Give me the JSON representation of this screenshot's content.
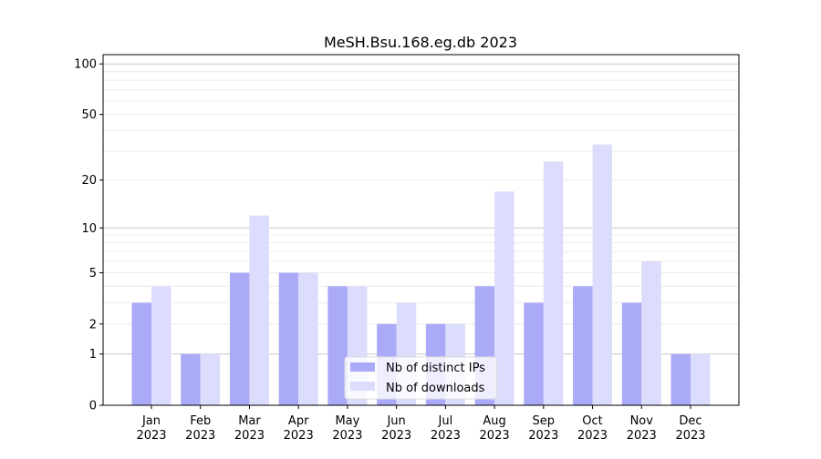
{
  "chart_data": {
    "type": "bar",
    "title": "MeSH.Bsu.168.eg.db 2023",
    "xlabel": "",
    "ylabel": "",
    "yscale": "log10(1+y)",
    "ylim": [
      0,
      113.5
    ],
    "yticks": [
      0,
      1,
      2,
      5,
      10,
      20,
      50,
      100
    ],
    "ytick_labels": [
      "0",
      "1",
      "2",
      "5",
      "10",
      "20",
      "50",
      "100"
    ],
    "grid": "horizontal, major at 1/10/100, minor at 2-9 and 20-90",
    "legend_position": "bottom-center",
    "categories": [
      "Jan\n2023",
      "Feb\n2023",
      "Mar\n2023",
      "Apr\n2023",
      "May\n2023",
      "Jun\n2023",
      "Jul\n2023",
      "Aug\n2023",
      "Sep\n2023",
      "Oct\n2023",
      "Nov\n2023",
      "Dec\n2023"
    ],
    "category_month": [
      "Jan",
      "Feb",
      "Mar",
      "Apr",
      "May",
      "Jun",
      "Jul",
      "Aug",
      "Sep",
      "Oct",
      "Nov",
      "Dec"
    ],
    "category_year": "2023",
    "series": [
      {
        "name": "Nb of distinct IPs",
        "color": "#aaaaf8",
        "values": [
          3,
          1,
          5,
          5,
          4,
          2,
          2,
          4,
          3,
          4,
          3,
          1
        ]
      },
      {
        "name": "Nb of downloads",
        "color": "#dcdcfc",
        "values": [
          4,
          1,
          12,
          5,
          4,
          3,
          2,
          17,
          26,
          33,
          6,
          1
        ]
      }
    ]
  }
}
